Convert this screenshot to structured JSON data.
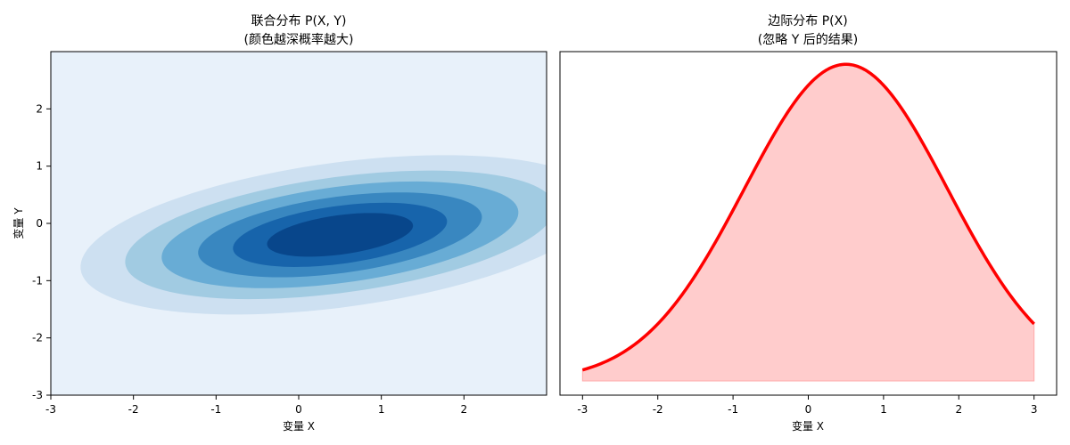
{
  "chart_data": [
    {
      "type": "contour",
      "title_line1": "联合分布 P(X, Y)",
      "title_line2": "(颜色越深概率越大)",
      "xlabel": "变量 X",
      "ylabel": "变量 Y",
      "xlim": [
        -3,
        3
      ],
      "ylim": [
        -3,
        3
      ],
      "xticks": [
        -3,
        -2,
        -1,
        0,
        1,
        2
      ],
      "yticks": [
        -3,
        -2,
        -1,
        0,
        1,
        2
      ],
      "center": [
        0.5,
        -0.2
      ],
      "levels": [
        {
          "semi_x": 3.2,
          "semi_y": 1.25,
          "color": "#cde0f1"
        },
        {
          "semi_x": 2.65,
          "semi_y": 1.0,
          "color": "#a1cbe2"
        },
        {
          "semi_x": 2.2,
          "semi_y": 0.83,
          "color": "#68acd5"
        },
        {
          "semi_x": 1.75,
          "semi_y": 0.66,
          "color": "#3987c0"
        },
        {
          "semi_x": 1.32,
          "semi_y": 0.5,
          "color": "#1764ab"
        },
        {
          "semi_x": 0.9,
          "semi_y": 0.34,
          "color": "#08468b"
        }
      ],
      "background_color": "#e8f1fa",
      "tilt_degrees": 12
    },
    {
      "type": "line",
      "title_line1": "边际分布 P(X)",
      "title_line2": "(忽略 Y 后的结果)",
      "xlabel": "变量 X",
      "xlim": [
        -3.3,
        3.3
      ],
      "xticks": [
        -3,
        -2,
        -1,
        0,
        1,
        2,
        3
      ],
      "mean": 0.5,
      "sd": 1.35,
      "x_range": [
        -3,
        3
      ],
      "line_color": "#ff0000",
      "fill_color": "#ffcccc"
    }
  ]
}
